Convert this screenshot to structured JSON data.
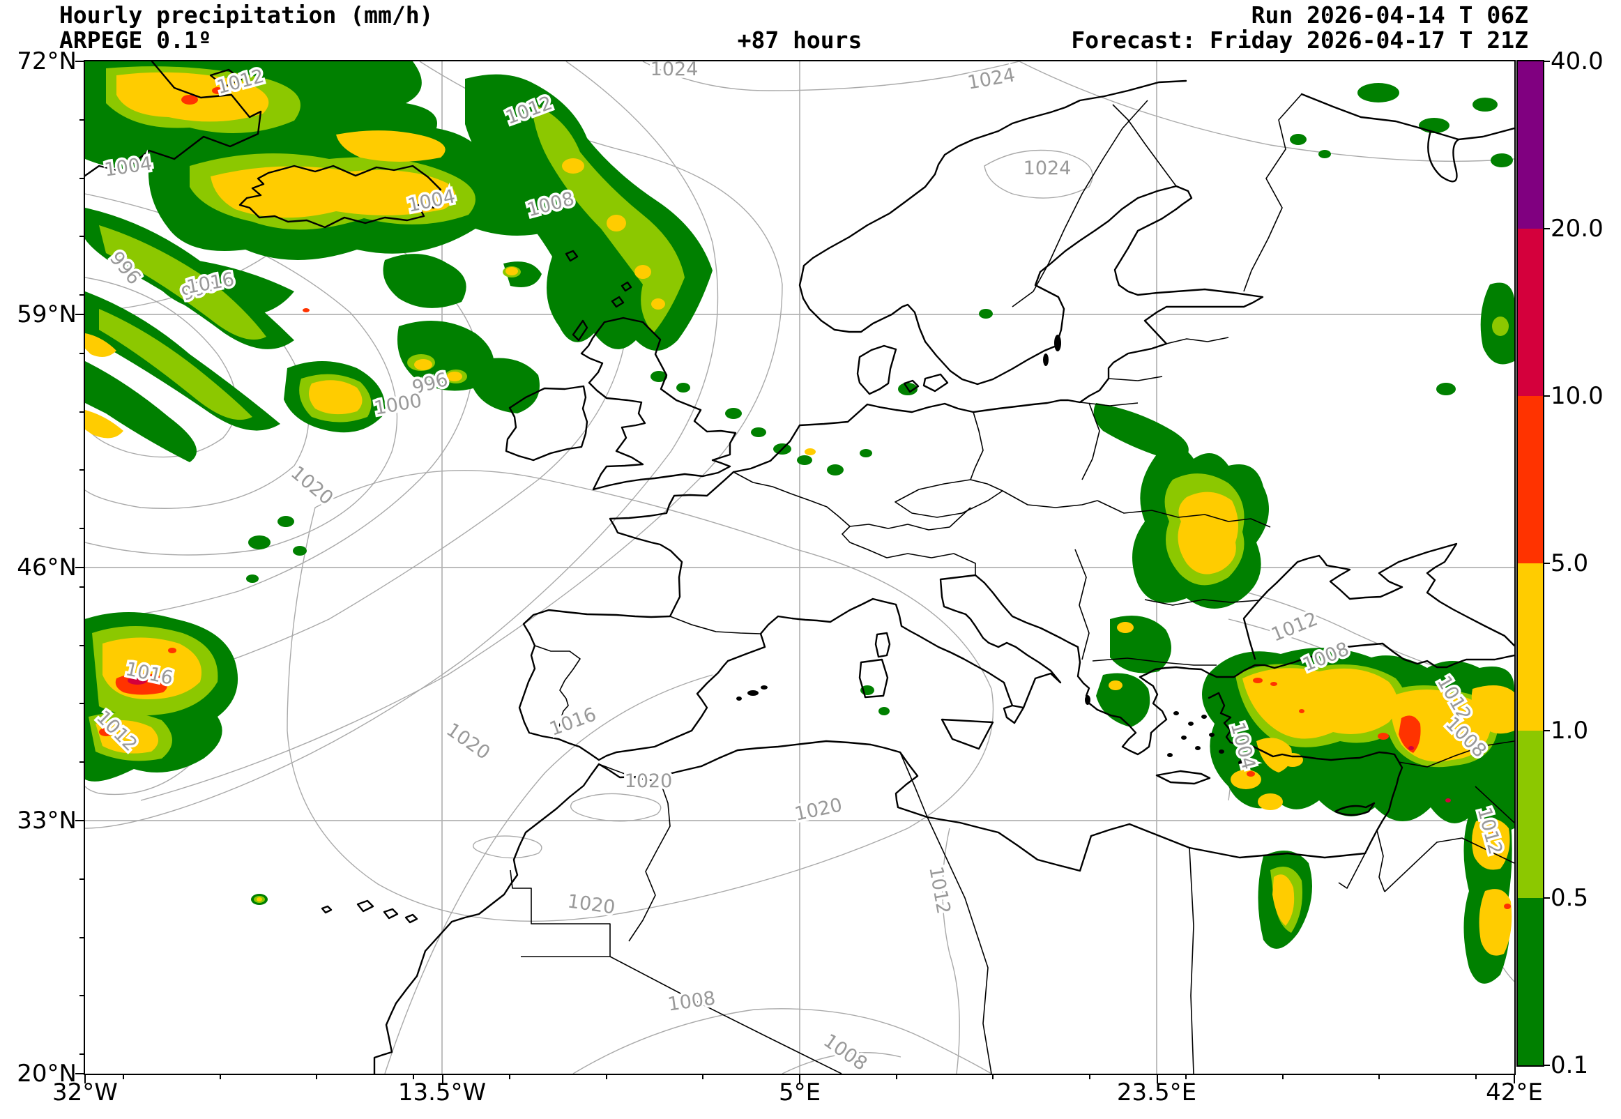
{
  "header": {
    "title_line1": "Hourly precipitation (mm/h)",
    "title_line2": "ARPEGE 0.1º",
    "hours": "+87 hours",
    "run": "Run 2026-04-14 T 06Z",
    "forecast": "Forecast: Friday 2026-04-17 T 21Z"
  },
  "axes": {
    "lat": [
      "72°N",
      "59°N",
      "46°N",
      "33°N",
      "20°N"
    ],
    "lon": [
      "32°W",
      "13.5°W",
      "5°E",
      "23.5°E",
      "42°E"
    ]
  },
  "colorbar": {
    "unit": "mm/h",
    "tick_labels": [
      "40.0",
      "20.0",
      "10.0",
      "5.0",
      "1.0",
      "0.5",
      "0.1"
    ],
    "levels_bottom_to_top": [
      0.1,
      0.5,
      1.0,
      5.0,
      10.0,
      20.0,
      40.0
    ],
    "colors_top_to_bottom": [
      "#800080",
      "#D4003C",
      "#FF3300",
      "#FFCC00",
      "#8CC800",
      "#008000"
    ],
    "palette": {
      "c01": "#008000",
      "c05": "#8CC800",
      "c1": "#FFCC00",
      "c5": "#FF3300",
      "c10": "#D4003C",
      "c20": "#800080"
    }
  },
  "isobar_labels": [
    "1012",
    "1004",
    "1004",
    "1008",
    "1012",
    "1024",
    "1024",
    "1024",
    "996",
    "996",
    "996",
    "1000",
    "1016",
    "1020",
    "1016",
    "1012",
    "1020",
    "1016",
    "1020",
    "1020",
    "1020",
    "1012",
    "1008",
    "1012",
    "1008",
    "1004",
    "1012",
    "1012",
    "1008",
    "1008"
  ],
  "map": {
    "grid_color": "#b3b3b3",
    "isobar_color": "#a9a9a9",
    "coast_color": "#000000"
  }
}
